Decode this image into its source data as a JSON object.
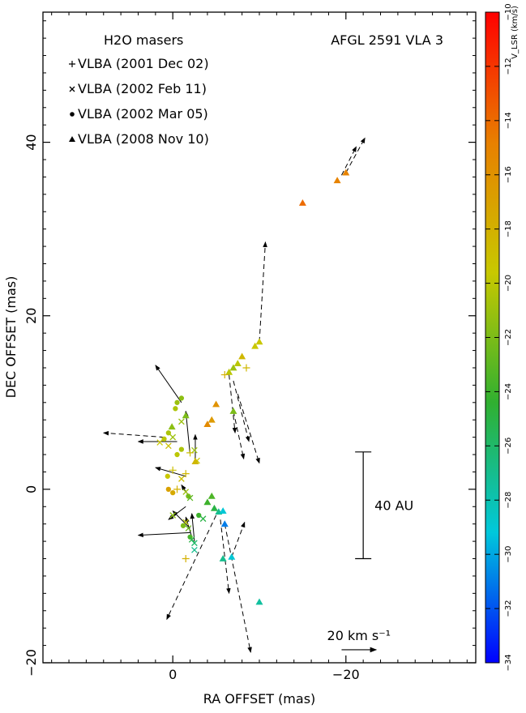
{
  "chart_data": {
    "type": "scatter",
    "title": "AFGL 2591 VLA 3",
    "legend_title": "H2O masers",
    "xlabel": "RA OFFSET (mas)",
    "ylabel": "DEC OFFSET (mas)",
    "xlim": [
      15,
      -35
    ],
    "ylim": [
      -20,
      55
    ],
    "xticks": [
      0,
      -20
    ],
    "yticks": [
      -20,
      0,
      20,
      40
    ],
    "colorbar": {
      "label": "V_LSR (km/s)",
      "min": -34,
      "max": -10,
      "ticks": [
        -34,
        -32,
        -30,
        -28,
        -26,
        -24,
        -22,
        -20,
        -18,
        -16,
        -14,
        -12,
        -10
      ],
      "stops": [
        "#0000ff",
        "#00c8dc",
        "#30b030",
        "#c8c800",
        "#e88000",
        "#ff0000"
      ]
    },
    "legend": [
      {
        "marker": "plus",
        "label": "VLBA (2001 Dec 02)"
      },
      {
        "marker": "cross",
        "label": "VLBA (2002 Feb 11)"
      },
      {
        "marker": "dot",
        "label": "VLBA (2002 Mar 05)"
      },
      {
        "marker": "triangle",
        "label": "VLBA (2008 Nov 10)"
      }
    ],
    "scale_bar": {
      "label": "40 AU",
      "x": -22,
      "y1": -8,
      "y2": 4.3
    },
    "velocity_ref": {
      "label": "20 km s⁻¹",
      "x1": -19.5,
      "x2": -23.5,
      "y": -18.5
    },
    "points": [
      {
        "x": -20,
        "y": 36.5,
        "v": -15,
        "m": "triangle"
      },
      {
        "x": -19,
        "y": 35.6,
        "v": -15,
        "m": "triangle"
      },
      {
        "x": -15,
        "y": 33,
        "v": -14,
        "m": "triangle"
      },
      {
        "x": -10,
        "y": 17,
        "v": -19.5,
        "m": "triangle"
      },
      {
        "x": -9.5,
        "y": 16.5,
        "v": -19.5,
        "m": "triangle"
      },
      {
        "x": -8,
        "y": 15.3,
        "v": -18.5,
        "m": "triangle"
      },
      {
        "x": -8.5,
        "y": 14,
        "v": -18.5,
        "m": "plus"
      },
      {
        "x": -7.5,
        "y": 14.5,
        "v": -20,
        "m": "triangle"
      },
      {
        "x": -7,
        "y": 14,
        "v": -21,
        "m": "triangle"
      },
      {
        "x": -6.5,
        "y": 13.5,
        "v": -20,
        "m": "triangle"
      },
      {
        "x": -6,
        "y": 13.2,
        "v": -18,
        "m": "plus"
      },
      {
        "x": -7,
        "y": 9,
        "v": -22,
        "m": "triangle"
      },
      {
        "x": -5,
        "y": 9.8,
        "v": -16,
        "m": "triangle"
      },
      {
        "x": -4.5,
        "y": 8,
        "v": -16.5,
        "m": "triangle"
      },
      {
        "x": -4,
        "y": 7.5,
        "v": -15.5,
        "m": "triangle"
      },
      {
        "x": -1,
        "y": 10.5,
        "v": -21.5,
        "m": "dot"
      },
      {
        "x": -0.5,
        "y": 10,
        "v": -21,
        "m": "dot"
      },
      {
        "x": -0.3,
        "y": 9.3,
        "v": -20.5,
        "m": "dot"
      },
      {
        "x": -1.5,
        "y": 8.5,
        "v": -22,
        "m": "triangle"
      },
      {
        "x": -1,
        "y": 7.8,
        "v": -21,
        "m": "cross"
      },
      {
        "x": 0.1,
        "y": 7.2,
        "v": -21.5,
        "m": "triangle"
      },
      {
        "x": 0.5,
        "y": 6.5,
        "v": -20.5,
        "m": "dot"
      },
      {
        "x": 0,
        "y": 6,
        "v": -21,
        "m": "cross"
      },
      {
        "x": 1,
        "y": 5.8,
        "v": -20,
        "m": "dot"
      },
      {
        "x": 1.5,
        "y": 5.4,
        "v": -19.5,
        "m": "cross"
      },
      {
        "x": 0.5,
        "y": 5,
        "v": -19,
        "m": "cross"
      },
      {
        "x": -2.5,
        "y": 4.5,
        "v": -21,
        "m": "cross"
      },
      {
        "x": -1,
        "y": 4.6,
        "v": -20.5,
        "m": "dot"
      },
      {
        "x": -0.5,
        "y": 4,
        "v": -20,
        "m": "dot"
      },
      {
        "x": -2.8,
        "y": 3.3,
        "v": -19.5,
        "m": "cross"
      },
      {
        "x": -2.6,
        "y": 3.2,
        "v": -18.5,
        "m": "triangle"
      },
      {
        "x": -2,
        "y": 4.2,
        "v": -19,
        "m": "plus"
      },
      {
        "x": 0,
        "y": 2.2,
        "v": -19,
        "m": "plus"
      },
      {
        "x": 0.6,
        "y": 1.5,
        "v": -19.5,
        "m": "dot"
      },
      {
        "x": -1,
        "y": 1.2,
        "v": -19,
        "m": "cross"
      },
      {
        "x": -1.5,
        "y": 1.8,
        "v": -18.5,
        "m": "plus"
      },
      {
        "x": 0.5,
        "y": 0,
        "v": -17,
        "m": "dot"
      },
      {
        "x": 0,
        "y": -0.4,
        "v": -17.5,
        "m": "dot"
      },
      {
        "x": -0.5,
        "y": 0,
        "v": -18,
        "m": "plus"
      },
      {
        "x": -1.5,
        "y": -0.3,
        "v": -21,
        "m": "cross"
      },
      {
        "x": -1.8,
        "y": -0.8,
        "v": -22,
        "m": "dot"
      },
      {
        "x": -2,
        "y": -1,
        "v": -23,
        "m": "cross"
      },
      {
        "x": -4.5,
        "y": -0.8,
        "v": -23.5,
        "m": "triangle"
      },
      {
        "x": -4,
        "y": -1.5,
        "v": -24,
        "m": "triangle"
      },
      {
        "x": -4.8,
        "y": -2.2,
        "v": -25,
        "m": "triangle"
      },
      {
        "x": -5.3,
        "y": -2.6,
        "v": -27,
        "m": "triangle"
      },
      {
        "x": -5.8,
        "y": -2.5,
        "v": -29,
        "m": "triangle"
      },
      {
        "x": -6,
        "y": -4,
        "v": -31,
        "m": "triangle"
      },
      {
        "x": 0,
        "y": -3,
        "v": -21.5,
        "m": "cross"
      },
      {
        "x": -1.5,
        "y": -3.8,
        "v": -20,
        "m": "cross"
      },
      {
        "x": -1.2,
        "y": -4.2,
        "v": -22,
        "m": "dot"
      },
      {
        "x": -1.8,
        "y": -4.5,
        "v": -22.5,
        "m": "cross"
      },
      {
        "x": -2,
        "y": -5.5,
        "v": -23.5,
        "m": "dot"
      },
      {
        "x": -2.2,
        "y": -5.8,
        "v": -25,
        "m": "cross"
      },
      {
        "x": -2.5,
        "y": -6.2,
        "v": -26,
        "m": "cross"
      },
      {
        "x": -2.5,
        "y": -7,
        "v": -27,
        "m": "cross"
      },
      {
        "x": -3,
        "y": -3,
        "v": -24,
        "m": "dot"
      },
      {
        "x": -3.5,
        "y": -3.4,
        "v": -25,
        "m": "cross"
      },
      {
        "x": -1.5,
        "y": -8,
        "v": -18,
        "m": "plus"
      },
      {
        "x": -5.8,
        "y": -8,
        "v": -27,
        "m": "triangle"
      },
      {
        "x": -6.8,
        "y": -7.8,
        "v": -29,
        "m": "triangle"
      },
      {
        "x": -10,
        "y": -13,
        "v": -27.5,
        "m": "triangle"
      }
    ],
    "arrows": [
      {
        "x1": -19.5,
        "y1": 36.2,
        "x2": -21.2,
        "y2": 39.5,
        "dashed": true
      },
      {
        "x1": -20,
        "y1": 36.5,
        "x2": -22.2,
        "y2": 40.5,
        "dashed": true
      },
      {
        "x1": -10,
        "y1": 17,
        "x2": -10.7,
        "y2": 28.5,
        "dashed": true
      },
      {
        "x1": -6.5,
        "y1": 13.2,
        "x2": -7.2,
        "y2": 6.5,
        "dashed": true
      },
      {
        "x1": -7,
        "y1": 12.5,
        "x2": -8.8,
        "y2": 5.5,
        "dashed": true
      },
      {
        "x1": -7.5,
        "y1": 11,
        "x2": -10,
        "y2": 3,
        "dashed": true
      },
      {
        "x1": -7,
        "y1": 9,
        "x2": -8.2,
        "y2": 3.5,
        "dashed": true
      },
      {
        "x1": -1,
        "y1": 10,
        "x2": 2,
        "y2": 14.3,
        "dashed": false
      },
      {
        "x1": -2,
        "y1": 4,
        "x2": -1.5,
        "y2": 9,
        "dashed": false
      },
      {
        "x1": -2.6,
        "y1": 3.2,
        "x2": -2.6,
        "y2": 6.3,
        "dashed": false
      },
      {
        "x1": -0.5,
        "y1": 5.5,
        "x2": 4,
        "y2": 5.5,
        "dashed": false
      },
      {
        "x1": 1,
        "y1": 6,
        "x2": 8,
        "y2": 6.5,
        "dashed": true
      },
      {
        "x1": -1.5,
        "y1": 1.5,
        "x2": 2,
        "y2": 2.5,
        "dashed": false
      },
      {
        "x1": -2,
        "y1": -1,
        "x2": -1,
        "y2": 0.5,
        "dashed": false
      },
      {
        "x1": -1.5,
        "y1": -2,
        "x2": 0.5,
        "y2": -3.5,
        "dashed": false
      },
      {
        "x1": -2,
        "y1": -5,
        "x2": 4,
        "y2": -5.3,
        "dashed": false
      },
      {
        "x1": -2,
        "y1": -4.5,
        "x2": 0,
        "y2": -2.5,
        "dashed": false
      },
      {
        "x1": -2.2,
        "y1": -5.5,
        "x2": -1.5,
        "y2": -3.2,
        "dashed": false
      },
      {
        "x1": -2.5,
        "y1": -6,
        "x2": -2.2,
        "y2": -2.8,
        "dashed": false
      },
      {
        "x1": -5,
        "y1": -3,
        "x2": 0.7,
        "y2": -15,
        "dashed": true
      },
      {
        "x1": -5.5,
        "y1": -3.5,
        "x2": -6.5,
        "y2": -12,
        "dashed": true
      },
      {
        "x1": -6,
        "y1": -4,
        "x2": -9,
        "y2": -18.8,
        "dashed": true
      },
      {
        "x1": -6.8,
        "y1": -7.8,
        "x2": -8.3,
        "y2": -3.8,
        "dashed": true
      }
    ]
  }
}
